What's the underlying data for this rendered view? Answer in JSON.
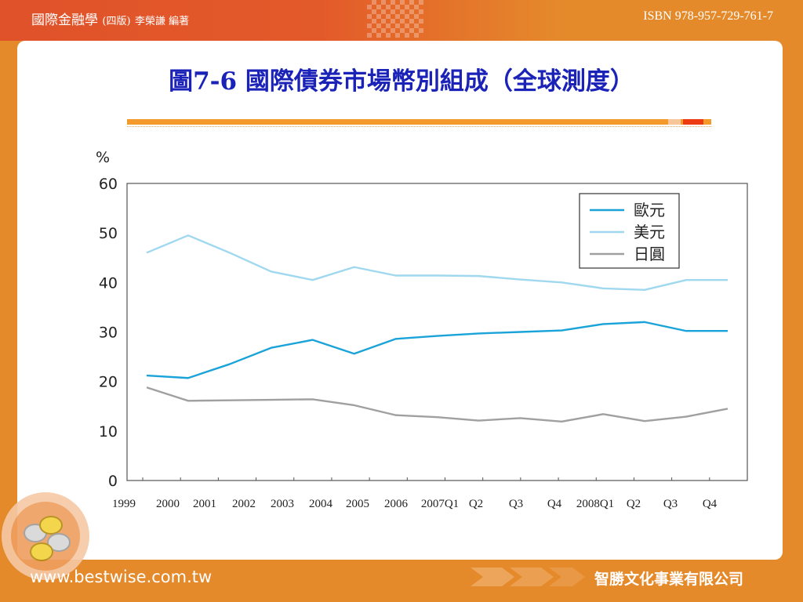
{
  "header": {
    "book_title": "國際金融學",
    "book_edition": "(四版)",
    "book_author": "李榮謙 編著",
    "isbn": "ISBN 978-957-729-761-7"
  },
  "slide": {
    "title": "圖7-6 國際債券市場幣別組成（全球測度）"
  },
  "colors": {
    "title_blue": "#1a22b8",
    "accent_orange": "#f39a2a",
    "accent_red": "#ee3a10",
    "euro_line": "#1aa3d8",
    "usd_line": "#9fd8ef",
    "yen_line": "#a0a0a0"
  },
  "chart_data": {
    "type": "line",
    "ylabel": "%",
    "ylim": [
      0,
      60
    ],
    "yticks": [
      "0",
      "10",
      "20",
      "30",
      "40",
      "50",
      "60"
    ],
    "xtick_labels": [
      "1999",
      "2000",
      "2001",
      "2002",
      "2003",
      "2004",
      "2005",
      "2006",
      "2007Q1",
      "Q2",
      "Q3",
      "Q4",
      "2008Q1",
      "Q2",
      "Q3",
      "Q4"
    ],
    "grid": false,
    "legend_position": "top-right",
    "series": [
      {
        "name": "歐元",
        "color": "#1aa3d8",
        "points": [
          [
            0,
            21.2
          ],
          [
            1,
            20.7
          ],
          [
            2,
            23.5
          ],
          [
            3,
            26.8
          ],
          [
            4,
            28.4
          ],
          [
            5,
            25.6
          ],
          [
            6,
            28.6
          ],
          [
            7,
            29.2
          ],
          [
            8,
            29.7
          ],
          [
            9,
            30.0
          ],
          [
            10,
            30.3
          ],
          [
            11,
            31.6
          ],
          [
            12,
            32.0
          ],
          [
            13,
            30.2
          ],
          [
            14,
            30.2
          ]
        ]
      },
      {
        "name": "美元",
        "color": "#9fd8ef",
        "points": [
          [
            0,
            46.0
          ],
          [
            1,
            49.5
          ],
          [
            2,
            46.0
          ],
          [
            3,
            42.2
          ],
          [
            4,
            40.5
          ],
          [
            5,
            43.1
          ],
          [
            6,
            41.4
          ],
          [
            7,
            41.4
          ],
          [
            8,
            41.3
          ],
          [
            9,
            40.6
          ],
          [
            10,
            40.0
          ],
          [
            11,
            38.8
          ],
          [
            12,
            38.5
          ],
          [
            13,
            40.5
          ],
          [
            14,
            40.5
          ]
        ]
      },
      {
        "name": "日圓",
        "color": "#a0a0a0",
        "points": [
          [
            0,
            18.8
          ],
          [
            1,
            16.1
          ],
          [
            2,
            16.2
          ],
          [
            3,
            16.3
          ],
          [
            4,
            16.4
          ],
          [
            5,
            15.2
          ],
          [
            6,
            13.2
          ],
          [
            7,
            12.8
          ],
          [
            8,
            12.1
          ],
          [
            9,
            12.6
          ],
          [
            10,
            11.9
          ],
          [
            11,
            13.4
          ],
          [
            12,
            12.0
          ],
          [
            13,
            12.9
          ],
          [
            14,
            14.5
          ]
        ]
      }
    ]
  },
  "footer": {
    "url": "www.bestwise.com.tw",
    "company": "智勝文化事業有限公司"
  }
}
